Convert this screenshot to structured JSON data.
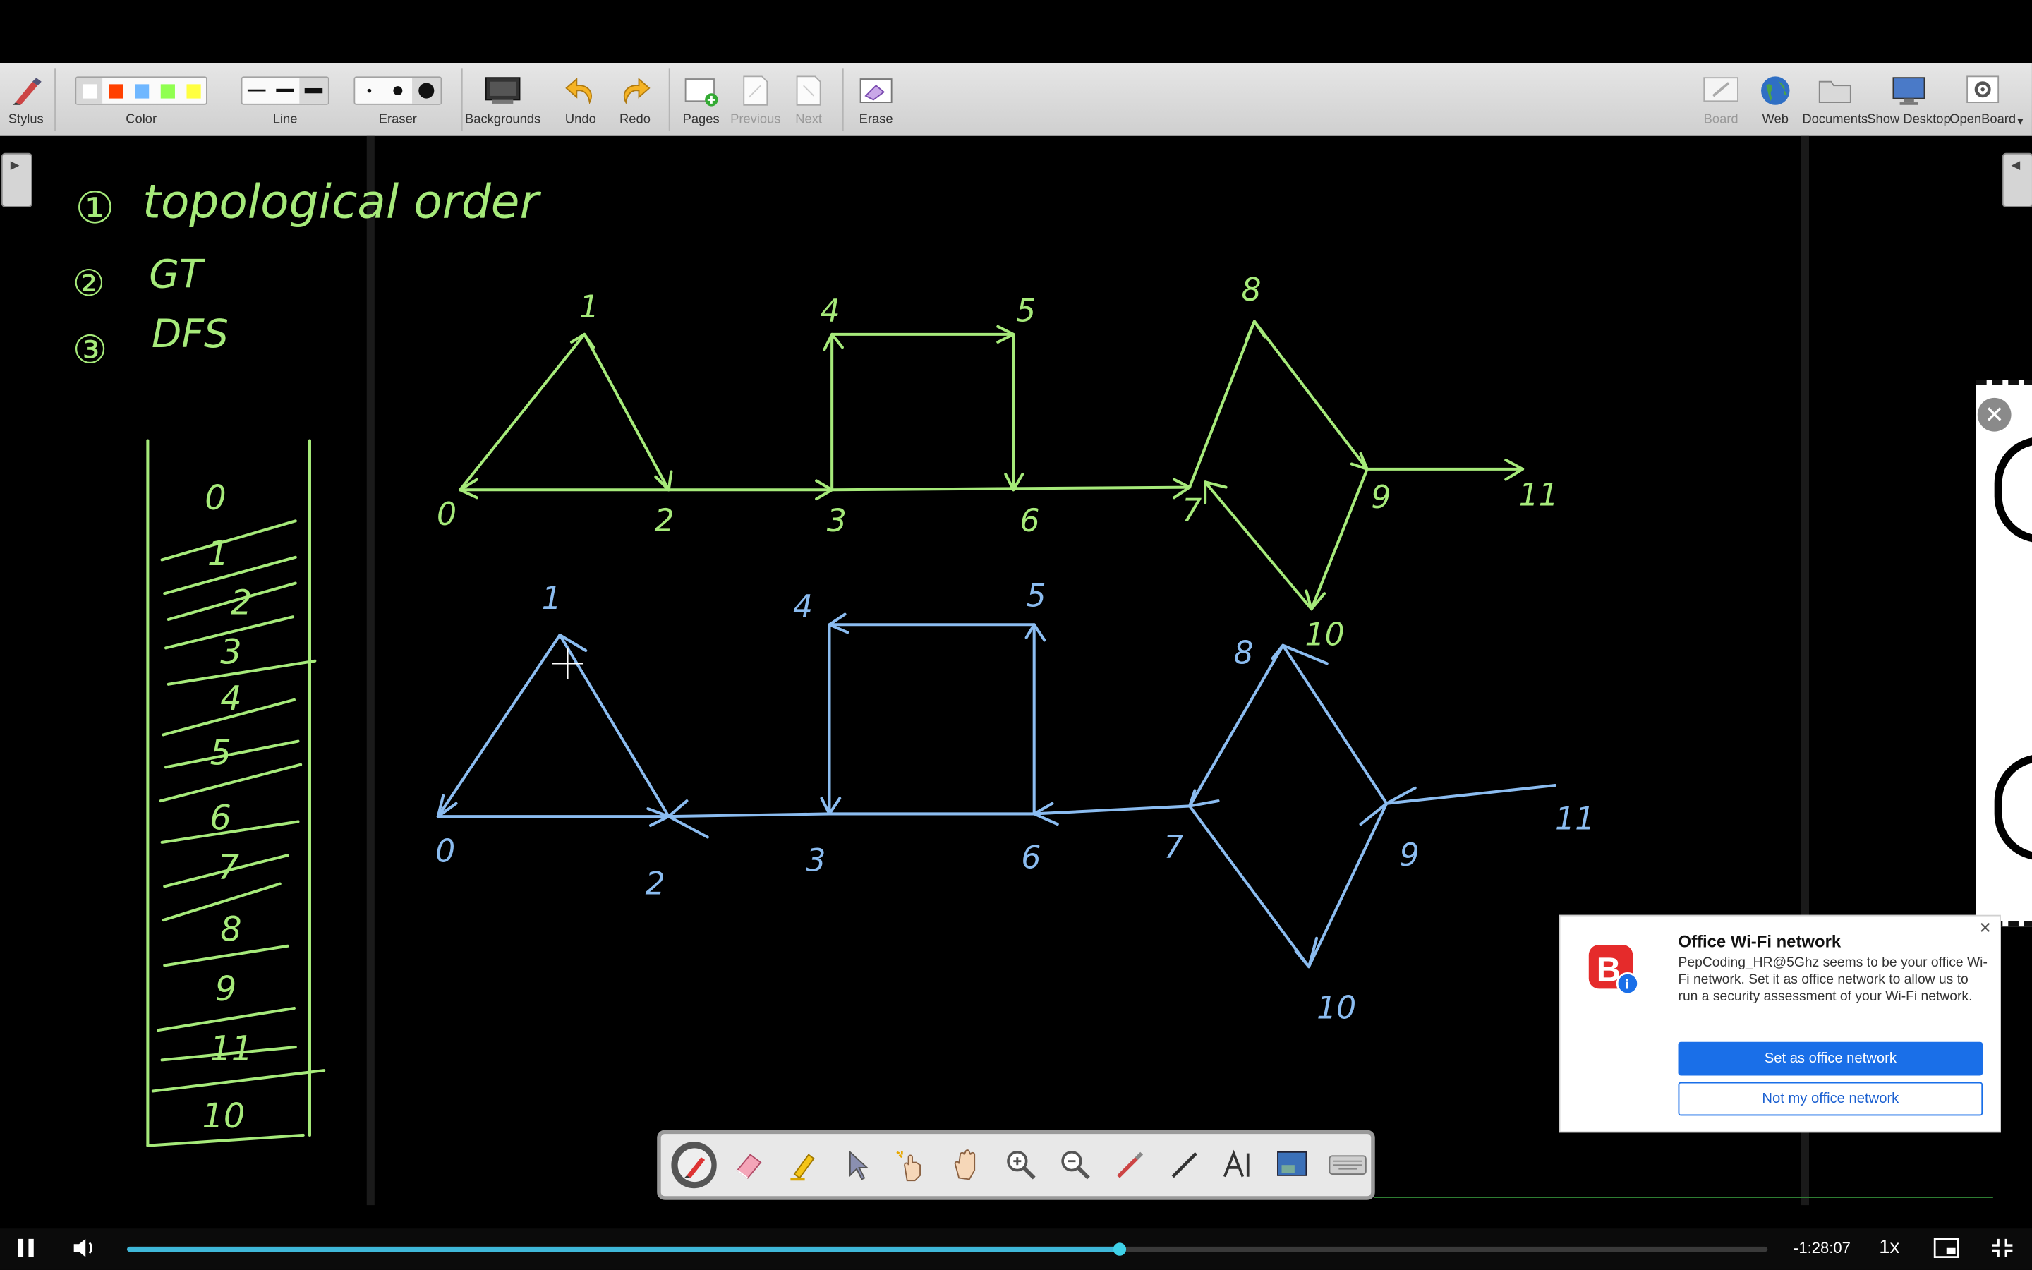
{
  "toolbar": {
    "stylus": "Stylus",
    "color": "Color",
    "line": "Line",
    "eraser": "Eraser",
    "backgrounds": "Backgrounds",
    "undo": "Undo",
    "redo": "Redo",
    "pages": "Pages",
    "previous": "Previous",
    "next": "Next",
    "erase": "Erase",
    "board": "Board",
    "web": "Web",
    "documents": "Documents",
    "show_desktop": "Show Desktop",
    "openboard": "OpenBoard",
    "colors": [
      "#ffffff",
      "#ff4000",
      "#6fb7ff",
      "#90ff50",
      "#ffff40"
    ]
  },
  "board": {
    "notes": [
      "topological order",
      "GT",
      "DFS"
    ],
    "note_numbers": [
      "①",
      "②",
      "③"
    ],
    "stack_items": [
      "0",
      "1",
      "2",
      "3",
      "4",
      "5",
      "6",
      "7",
      "8",
      "9",
      "11",
      "10"
    ],
    "green_labels": [
      "0",
      "1",
      "2",
      "3",
      "4",
      "5",
      "6",
      "7",
      "8",
      "9",
      "10",
      "11"
    ],
    "blue_labels": [
      "0",
      "1",
      "2",
      "3",
      "4",
      "5",
      "6",
      "7",
      "8",
      "9",
      "10",
      "11"
    ],
    "ink_green": "#a6ea7a",
    "ink_blue": "#8bbcf0"
  },
  "notification": {
    "title": "Office Wi-Fi network",
    "body": "PepCoding_HR@5Ghz seems to be your office Wi-Fi network. Set it as office network to allow us to run a security assessment of your Wi-Fi network.",
    "primary": "Set as office network",
    "secondary": "Not my office network",
    "brand_color": "#e52b2b"
  },
  "player": {
    "time_remaining": "-1:28:07",
    "speed": "1x",
    "progress": 0.605,
    "accent": "#3fb8d9"
  }
}
